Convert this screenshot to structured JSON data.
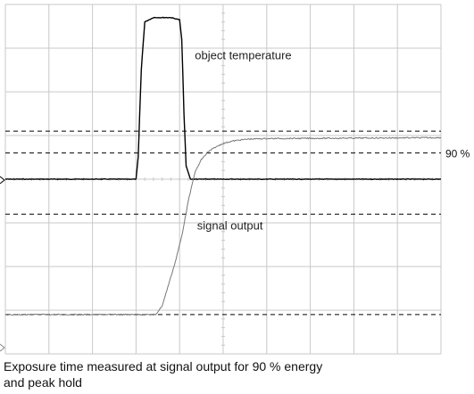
{
  "chart_data": {
    "type": "line",
    "title": "",
    "xlabel": "",
    "ylabel": "",
    "grid": true,
    "xlim": [
      0,
      10
    ],
    "ylim": [
      -4,
      4
    ],
    "series": [
      {
        "name": "object temperature",
        "color": "#000000",
        "x": [
          0,
          3.0,
          3.05,
          3.12,
          3.2,
          3.4,
          3.6,
          3.8,
          4.0,
          4.05,
          4.1,
          4.15,
          4.25,
          10
        ],
        "y": [
          0,
          0,
          0.5,
          2.5,
          3.6,
          3.7,
          3.7,
          3.7,
          3.65,
          3.2,
          1.5,
          0.3,
          0,
          0
        ]
      },
      {
        "name": "signal output",
        "color": "#777777",
        "x": [
          0,
          3.45,
          3.6,
          3.75,
          3.9,
          4.05,
          4.2,
          4.35,
          4.5,
          4.65,
          4.8,
          5.0,
          5.2,
          5.4,
          5.6,
          6.0,
          10
        ],
        "y": [
          -3.1,
          -3.1,
          -2.9,
          -2.4,
          -1.9,
          -1.3,
          -0.5,
          0.15,
          0.45,
          0.62,
          0.72,
          0.82,
          0.87,
          0.9,
          0.92,
          0.93,
          0.95
        ]
      }
    ],
    "reference_lines": [
      {
        "y": 1.1,
        "label": ""
      },
      {
        "y": 0.6,
        "label": "90 %"
      },
      {
        "y": -0.8,
        "label": ""
      },
      {
        "y": -3.1,
        "label": ""
      }
    ],
    "annotations": [
      {
        "text": "object temperature",
        "x": 4.35,
        "y": 2.75
      },
      {
        "text": "signal output",
        "x": 4.4,
        "y": -1.15
      }
    ]
  },
  "caption": {
    "line1": "Exposure time measured at signal output for 90 % energy",
    "line2": "and peak hold"
  }
}
